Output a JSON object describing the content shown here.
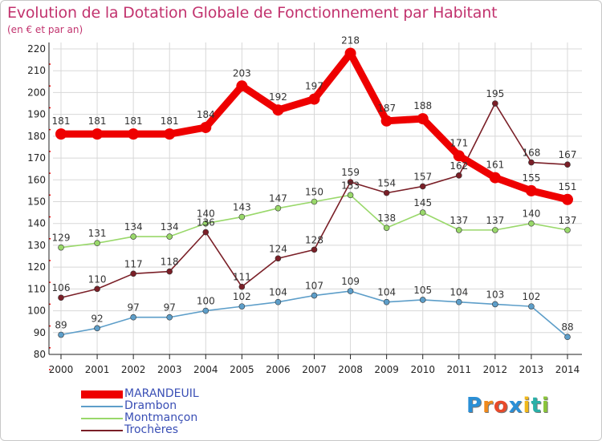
{
  "title": "Evolution de la Dotation Globale de Fonctionnement par Habitant",
  "subtitle": "(en € et par an)",
  "logo": {
    "text": "Proxiti",
    "letters": [
      "P",
      "r",
      "o",
      "x",
      "i",
      "t",
      "i"
    ],
    "colors": [
      "#2a8fd6",
      "#f08a1c",
      "#e84a2a",
      "#2a8fd6",
      "#f0b81c",
      "#2ab0a8",
      "#8ac43a"
    ]
  },
  "colors": {
    "title": "#c2336e",
    "axis": "#222222",
    "grid": "#d8d8d8",
    "legend_text": "#3a4fb5"
  },
  "chart_data": {
    "type": "line",
    "x": [
      "2000",
      "2001",
      "2002",
      "2003",
      "2004",
      "2005",
      "2006",
      "2007",
      "2008",
      "2009",
      "2010",
      "2011",
      "2012",
      "2013",
      "2014"
    ],
    "ylim": [
      80,
      220
    ],
    "yticks": [
      80,
      90,
      100,
      110,
      120,
      130,
      140,
      150,
      160,
      170,
      180,
      190,
      200,
      210,
      220
    ],
    "grid": true,
    "legend_placement": "bottom-left",
    "series": [
      {
        "name": "MARANDEUIL",
        "color": "#ee0000",
        "values": [
          181,
          181,
          181,
          181,
          184,
          203,
          192,
          197,
          218,
          187,
          188,
          171,
          161,
          155,
          151
        ],
        "labels": [
          "181",
          "181",
          "181",
          "181",
          "184",
          "203",
          "192",
          "197",
          "218",
          "187",
          "188",
          "171",
          "161",
          "155",
          "151"
        ]
      },
      {
        "name": "Drambon",
        "color": "#5d9ec9",
        "values": [
          89,
          92,
          97,
          97,
          100,
          102,
          104,
          107,
          109,
          104,
          105,
          104,
          103,
          102,
          88
        ],
        "labels": [
          "89",
          "92",
          "97",
          "97",
          "100",
          "102",
          "104",
          "107",
          "109",
          "104",
          "105",
          "104",
          "103",
          "102",
          "88"
        ]
      },
      {
        "name": "Montmançon",
        "color": "#99d86a",
        "values": [
          129,
          131,
          134,
          134,
          140,
          143,
          147,
          150,
          153,
          138,
          145,
          137,
          137,
          140,
          137
        ],
        "labels": [
          "129",
          "131",
          "134",
          "134",
          "140",
          "143",
          "147",
          "150",
          "153",
          "138",
          "145",
          "137",
          "137",
          "140",
          "137"
        ]
      },
      {
        "name": "Trochères",
        "color": "#7a1f27",
        "values": [
          106,
          110,
          117,
          118,
          136,
          111,
          124,
          128,
          159,
          154,
          157,
          162,
          195,
          168,
          167
        ],
        "labels": [
          "106",
          "110",
          "117",
          "118",
          "136",
          "111",
          "124",
          "128",
          "159",
          "154",
          "157",
          "162",
          "195",
          "168",
          "167"
        ]
      }
    ]
  }
}
